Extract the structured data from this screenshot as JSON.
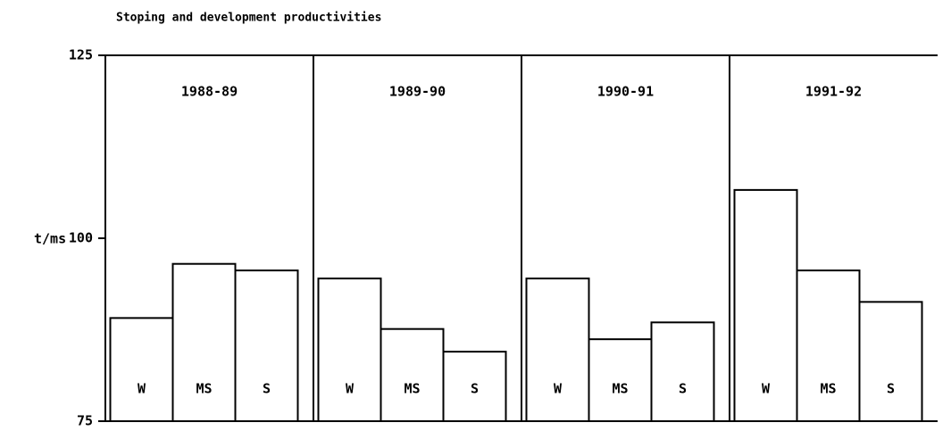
{
  "chart_data": {
    "type": "bar",
    "title": "Stoping and development productivities",
    "y_label": "t/ms",
    "categories": [
      "1988-89",
      "1989-90",
      "1990-91",
      "1991-92"
    ],
    "series": [
      {
        "name": "W",
        "color": "#ffffff",
        "values": [
          89.1,
          94.5,
          94.5,
          106.6
        ]
      },
      {
        "name": "MS",
        "color": "#ffffff",
        "values": [
          96.5,
          87.6,
          86.2,
          95.6
        ]
      },
      {
        "name": "S",
        "color": "#ffffff",
        "values": [
          95.6,
          84.5,
          88.5,
          91.3
        ]
      }
    ],
    "ylim": [
      75,
      125
    ],
    "yticks": [
      75,
      100,
      125
    ]
  }
}
